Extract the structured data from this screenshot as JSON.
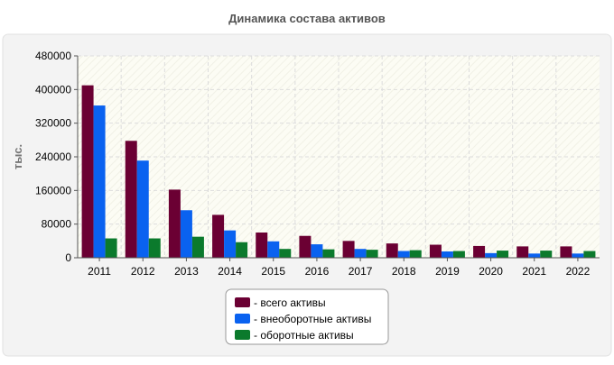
{
  "chart_data": {
    "type": "bar",
    "title": "Динамика состава активов",
    "ylabel": "тыс.",
    "xlabel": "",
    "categories": [
      "2011",
      "2012",
      "2013",
      "2014",
      "2015",
      "2016",
      "2017",
      "2018",
      "2019",
      "2020",
      "2021",
      "2022"
    ],
    "ylim": [
      0,
      480000
    ],
    "yticks": [
      0,
      80000,
      160000,
      240000,
      320000,
      400000,
      480000
    ],
    "grid": true,
    "legend_position": "bottom-center",
    "series": [
      {
        "name": "- всего активы",
        "color": "#6b0033",
        "values": [
          410000,
          278000,
          162000,
          102000,
          60000,
          52000,
          40000,
          34000,
          31000,
          28000,
          27000,
          27000
        ]
      },
      {
        "name": "- внеоборотные активы",
        "color": "#0a62f0",
        "values": [
          362000,
          231000,
          113000,
          65000,
          39000,
          32000,
          21000,
          16000,
          15000,
          11000,
          10000,
          10000
        ]
      },
      {
        "name": "- оборотные активы",
        "color": "#0b7a2c",
        "values": [
          46000,
          46000,
          50000,
          37000,
          21000,
          20000,
          19000,
          18000,
          16000,
          17000,
          17000,
          16000
        ]
      }
    ]
  }
}
